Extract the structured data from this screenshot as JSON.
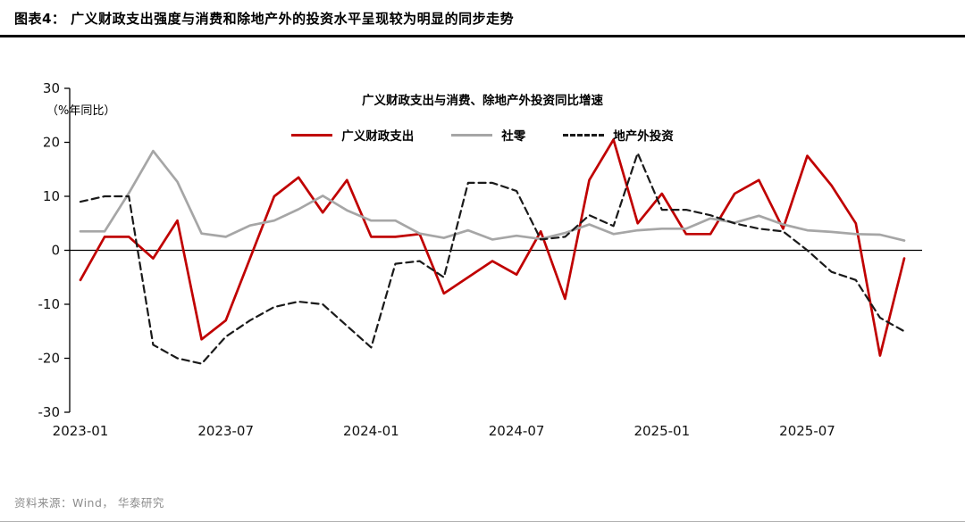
{
  "header": {
    "title": "图表4：  广义财政支出强度与消费和除地产外的投资水平呈现较为明显的同步走势"
  },
  "footer": {
    "source": "资料来源：Wind， 华泰研究"
  },
  "chart_data": {
    "type": "line",
    "title": "广义财政支出与消费、除地产外投资同比增速",
    "unit_label": "（%年同比）",
    "ylabel": "% 年同比",
    "ylim": [
      -30,
      30
    ],
    "yticks": [
      30,
      20,
      10,
      0,
      -10,
      -20,
      -30
    ],
    "grid": false,
    "legend_position": "top",
    "xtick_labels": [
      "2023-01",
      "2023-07",
      "2024-01",
      "2024-07",
      "2025-01",
      "2025-07"
    ],
    "xtick_month_indices": [
      0,
      6,
      12,
      18,
      24,
      30
    ],
    "x": [
      "2023-01",
      "2023-02",
      "2023-03",
      "2023-04",
      "2023-05",
      "2023-06",
      "2023-07",
      "2023-08",
      "2023-09",
      "2023-10",
      "2023-11",
      "2023-12",
      "2024-01",
      "2024-02",
      "2024-03",
      "2024-04",
      "2024-05",
      "2024-06",
      "2024-07",
      "2024-08",
      "2024-09",
      "2024-10",
      "2024-11",
      "2024-12",
      "2025-01",
      "2025-02",
      "2025-03",
      "2025-04",
      "2025-05",
      "2025-06",
      "2025-07",
      "2025-08",
      "2025-09",
      "2025-10",
      "2025-11"
    ],
    "series": [
      {
        "name": "广义财政支出",
        "color": "#C00000",
        "style": "solid",
        "values": [
          -5.5,
          2.5,
          2.5,
          -1.5,
          5.5,
          -16.5,
          -13,
          -1.5,
          10,
          13.5,
          7,
          13,
          2.5,
          2.5,
          3,
          -8,
          -5,
          -2,
          -4.5,
          3.5,
          -9,
          13,
          20.5,
          5,
          10.5,
          3,
          3,
          10.5,
          13,
          4,
          17.5,
          12,
          5,
          -19.5,
          -1.5
        ]
      },
      {
        "name": "社零",
        "color": "#A6A6A6",
        "style": "solid",
        "values": [
          3.5,
          3.5,
          10.6,
          18.4,
          12.7,
          3.1,
          2.5,
          4.6,
          5.5,
          7.6,
          10.1,
          7.4,
          5.5,
          5.5,
          3.1,
          2.3,
          3.7,
          2.0,
          2.7,
          2.1,
          3.2,
          4.8,
          3.0,
          3.7,
          4.0,
          4.0,
          5.9,
          5.1,
          6.4,
          4.8,
          3.7,
          3.4,
          3.0,
          2.9,
          1.8
        ]
      },
      {
        "name": "地产外投资",
        "color": "#1A1A1A",
        "style": "dashed",
        "values": [
          9,
          10,
          10,
          -17.5,
          -20,
          -21,
          -16,
          -13,
          -10.5,
          -9.5,
          -10,
          -14,
          -18,
          -2.5,
          -2,
          -5,
          12.5,
          12.5,
          11,
          2,
          2.5,
          6.5,
          4.5,
          18,
          7.5,
          7.5,
          6.5,
          5,
          4,
          3.5,
          0,
          -4,
          -5.5,
          -12.5,
          -15
        ]
      }
    ]
  }
}
